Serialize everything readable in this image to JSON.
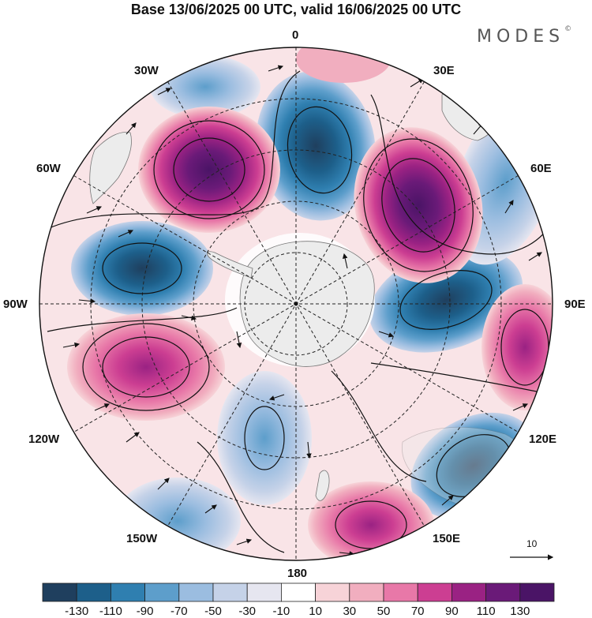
{
  "title": "Base 13/06/2025 00 UTC, valid 16/06/2025 00 UTC",
  "brand": {
    "name": "MODES",
    "mark": "©"
  },
  "longitude_labels": {
    "lon_0": "0",
    "lon_30e": "30E",
    "lon_60e": "60E",
    "lon_90e": "90E",
    "lon_120e": "120E",
    "lon_150e": "150E",
    "lon_180": "180",
    "lon_150w": "150W",
    "lon_120w": "120W",
    "lon_90w": "90W",
    "lon_60w": "60W",
    "lon_30w": "30W"
  },
  "reference_vector": {
    "value": "10"
  },
  "colorbar": {
    "labels": [
      "-130",
      "-110",
      "-90",
      "-70",
      "-50",
      "-30",
      "-10",
      "10",
      "30",
      "50",
      "70",
      "90",
      "110",
      "130"
    ],
    "colors": [
      "#1f3f5e",
      "#1d5f8a",
      "#2f7fb0",
      "#5d9ecb",
      "#9bbde0",
      "#c5d2e8",
      "#e6e6f0",
      "#ffffff",
      "#f7d3d8",
      "#f1aebf",
      "#e878a8",
      "#cc3e92",
      "#9a2283",
      "#6a1a78",
      "#4a1466"
    ]
  },
  "map": {
    "projection": "south polar stereographic",
    "colors": {
      "land": "#ececec",
      "coast": "#777777",
      "grid": "#222222"
    }
  }
}
